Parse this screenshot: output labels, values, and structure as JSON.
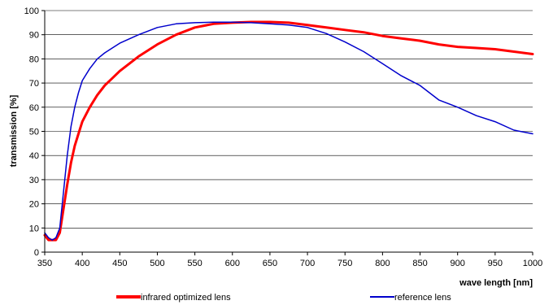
{
  "chart_data": {
    "type": "line",
    "xlabel": "wave length [nm]",
    "ylabel": "transmission [%]",
    "xlim": [
      350,
      1000
    ],
    "ylim": [
      0,
      100
    ],
    "x_ticks": [
      "350",
      "400",
      "450",
      "500",
      "550",
      "600",
      "650",
      "700",
      "750",
      "800",
      "850",
      "900",
      "950",
      "1000"
    ],
    "y_ticks": [
      "0",
      "10",
      "20",
      "30",
      "40",
      "50",
      "60",
      "70",
      "80",
      "90",
      "100"
    ],
    "grid": "horizontal",
    "legend_position": "bottom",
    "series": [
      {
        "name": "infrared optimized lens",
        "color": "#ff0000",
        "x": [
          350,
          355,
          360,
          365,
          370,
          375,
          380,
          385,
          390,
          395,
          400,
          410,
          420,
          430,
          440,
          450,
          475,
          500,
          525,
          550,
          575,
          600,
          625,
          650,
          675,
          700,
          725,
          750,
          775,
          800,
          825,
          850,
          875,
          900,
          925,
          950,
          975,
          1000
        ],
        "y": [
          7,
          5,
          5,
          5,
          8,
          18,
          28,
          37,
          44,
          49,
          54,
          60,
          65,
          69,
          72,
          75,
          81,
          86,
          90,
          93,
          94.5,
          95,
          95.3,
          95.3,
          95,
          94,
          93,
          92,
          91,
          89.5,
          88.5,
          87.5,
          86,
          85,
          84.5,
          84,
          83,
          82
        ]
      },
      {
        "name": "reference lens",
        "color": "#0000cc",
        "x": [
          350,
          355,
          360,
          365,
          370,
          375,
          380,
          385,
          390,
          395,
          400,
          410,
          420,
          430,
          440,
          450,
          475,
          500,
          525,
          550,
          575,
          600,
          625,
          650,
          675,
          700,
          725,
          750,
          775,
          800,
          825,
          850,
          875,
          900,
          925,
          950,
          975,
          1000
        ],
        "y": [
          8,
          6,
          5,
          6,
          10,
          25,
          40,
          52,
          60,
          66,
          71,
          76,
          80,
          82.5,
          84.5,
          86.5,
          90,
          93,
          94.5,
          95,
          95.2,
          95.2,
          95,
          94.5,
          94,
          93,
          90.5,
          87,
          83,
          78,
          73,
          69,
          63,
          60,
          56.5,
          54,
          50.5,
          49
        ]
      }
    ]
  }
}
